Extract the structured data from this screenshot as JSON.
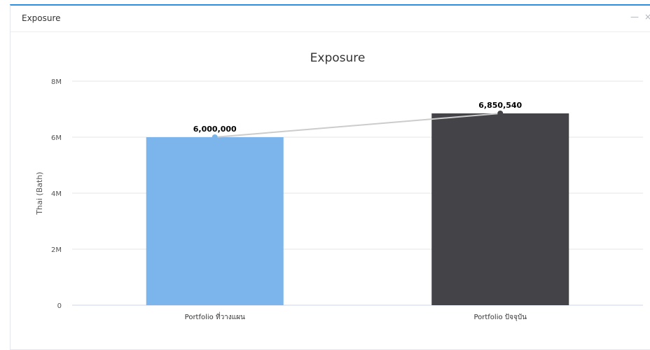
{
  "panel": {
    "title": "Exposure",
    "minimize_glyph": "—",
    "close_glyph": "×"
  },
  "chart_data": {
    "type": "bar",
    "title": "Exposure",
    "xlabel": "",
    "ylabel": "Thai (Bath)",
    "ylim": [
      0,
      8000000
    ],
    "yticks": [
      0,
      2000000,
      4000000,
      6000000,
      8000000
    ],
    "ytick_labels": [
      "0",
      "2M",
      "4M",
      "6M",
      "8M"
    ],
    "categories": [
      "Portfolio ที่วางแผน",
      "Portfolio ปัจจุบัน"
    ],
    "values": [
      6000000,
      6850540
    ],
    "data_labels": [
      "6,000,000",
      "6,850,540"
    ],
    "bar_colors": [
      "#7cb5ec",
      "#434348"
    ],
    "line_overlay": true,
    "line_color": "#cccccc",
    "grid": true,
    "legend": "none"
  }
}
